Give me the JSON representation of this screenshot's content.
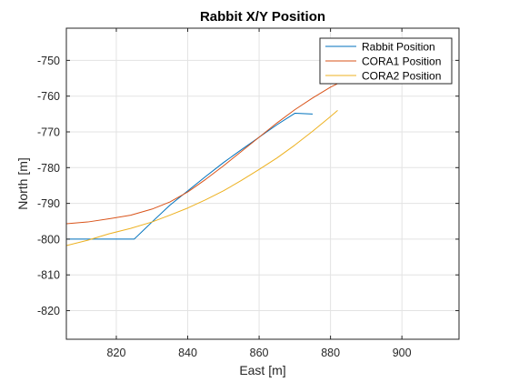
{
  "chart_data": {
    "type": "line",
    "title": "Rabbit X/Y Position",
    "xlabel": "East [m]",
    "ylabel": "North [m]",
    "xlim": [
      806,
      916
    ],
    "ylim": [
      -828,
      -741
    ],
    "xticks": [
      820,
      840,
      860,
      880,
      900
    ],
    "yticks": [
      -750,
      -760,
      -770,
      -780,
      -790,
      -800,
      -810,
      -820
    ],
    "grid": true,
    "legend_position": "top-right",
    "series": [
      {
        "name": "Rabbit Position",
        "color": "#0072BD",
        "x": [
          806,
          825,
          830,
          835,
          840,
          845,
          850,
          855,
          860,
          865,
          870,
          875
        ],
        "y": [
          -800,
          -800,
          -795.2,
          -790.5,
          -786.5,
          -782.5,
          -778.6,
          -775,
          -771.5,
          -768,
          -764.8,
          -765
        ]
      },
      {
        "name": "CORA1 Position",
        "color": "#D95319",
        "x": [
          806,
          812,
          818,
          824,
          830,
          835,
          840,
          845,
          850,
          855,
          860,
          865,
          870,
          875,
          880,
          882
        ],
        "y": [
          -795.7,
          -795.2,
          -794.3,
          -793.3,
          -791.6,
          -789.6,
          -786.8,
          -783.3,
          -779.5,
          -775.5,
          -771.5,
          -767.5,
          -763.8,
          -760.5,
          -757.5,
          -756.5
        ]
      },
      {
        "name": "CORA2 Position",
        "color": "#EDB120",
        "x": [
          806,
          812,
          818,
          824,
          830,
          835,
          840,
          845,
          850,
          855,
          860,
          865,
          870,
          875,
          880,
          882
        ],
        "y": [
          -801.8,
          -800.3,
          -798.5,
          -797,
          -795.2,
          -793.3,
          -791.3,
          -789,
          -786.5,
          -783.6,
          -780.5,
          -777.3,
          -773.7,
          -769.8,
          -765.7,
          -764
        ]
      }
    ]
  }
}
